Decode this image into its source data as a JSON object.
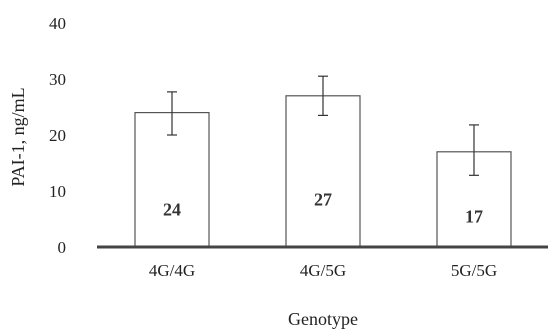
{
  "chart_data": {
    "type": "bar",
    "title": "",
    "xlabel": "Genotype",
    "ylabel": "PAI-1, ng/mL",
    "categories": [
      "4G/4G",
      "4G/5G",
      "5G/5G"
    ],
    "values": [
      24,
      27,
      17
    ],
    "data_labels": [
      "24",
      "27",
      "17"
    ],
    "error_bars": [
      {
        "low": 20.0,
        "high": 27.7
      },
      {
        "low": 23.5,
        "high": 30.5
      },
      {
        "low": 12.8,
        "high": 21.8
      }
    ],
    "yticks": [
      0,
      10,
      20,
      30,
      40
    ],
    "ylim": [
      0,
      40
    ],
    "grid": false,
    "legend": "none",
    "colors": {
      "bar_fill": "#ffffff",
      "bar_stroke": "#555555",
      "text": "#222222"
    }
  }
}
